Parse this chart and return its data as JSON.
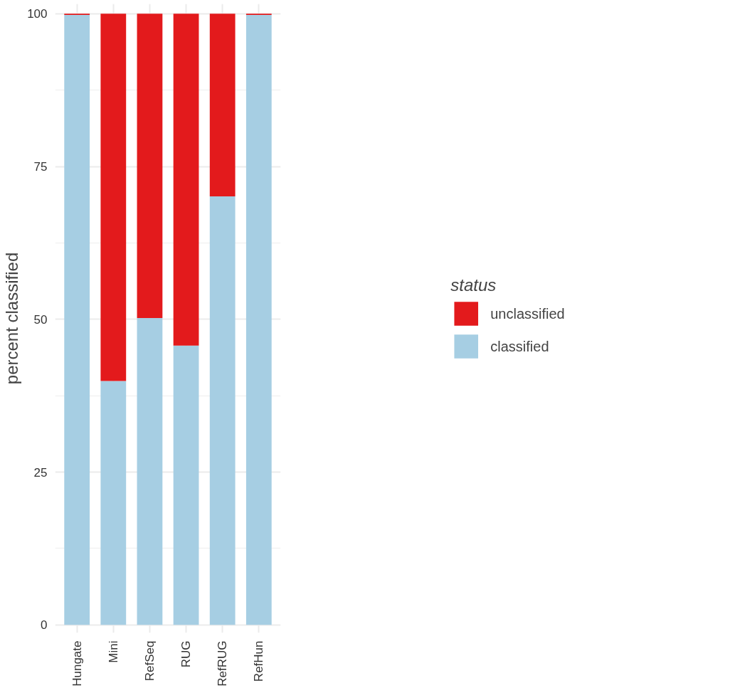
{
  "chart_data": {
    "type": "bar",
    "stacked": true,
    "ylabel": "percent classified",
    "legend_title": "status",
    "categories": [
      "Hungate",
      "Mini",
      "RefSeq",
      "RUG",
      "RefRUG",
      "RefHun"
    ],
    "series": [
      {
        "name": "classified",
        "color": "#a6cee3",
        "values": [
          99.8,
          39.9,
          50.2,
          45.7,
          70.1,
          99.8
        ]
      },
      {
        "name": "unclassified",
        "color": "#e31a1c",
        "values": [
          0.2,
          60.1,
          49.8,
          54.3,
          29.9,
          0.2
        ]
      }
    ],
    "ylim": [
      -1.3,
      101.6
    ],
    "yticks": [
      0,
      25,
      50,
      75,
      100
    ],
    "grid": true,
    "legend": "right"
  }
}
